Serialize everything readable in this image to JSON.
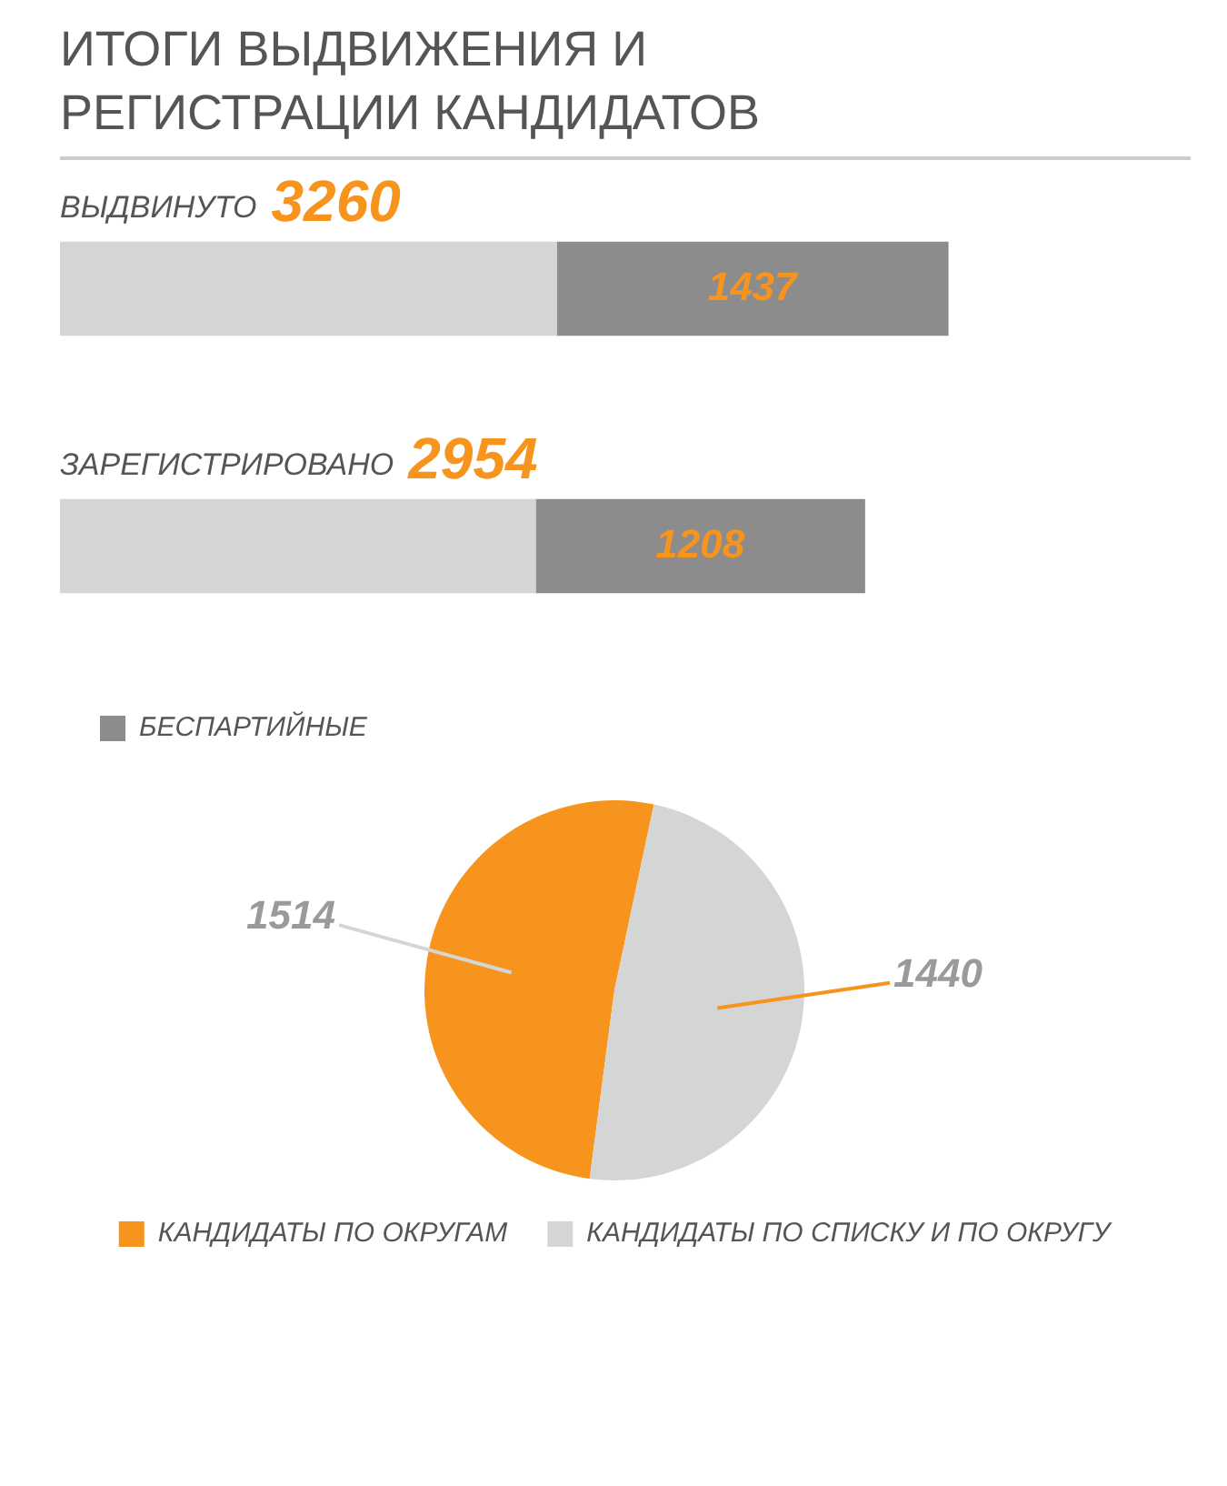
{
  "chart_data": [
    {
      "type": "bar",
      "title": "ИТОГИ ВЫДВИЖЕНИЯ И РЕГИСТРАЦИИ КАНДИДАТОВ",
      "orientation": "horizontal",
      "stacked": true,
      "categories": [
        "ВЫДВИНУТО",
        "ЗАРЕГИСТРИРОВАНО"
      ],
      "series": [
        {
          "color": "#d4d6d6",
          "values": [
            1823,
            1746
          ]
        },
        {
          "name": "БЕСПАРТИЙНЫЕ",
          "color": "#8c8c8c",
          "values": [
            1437,
            1208
          ],
          "value_labels": [
            "1437",
            "1208"
          ]
        }
      ],
      "totals": [
        "3260",
        "2954"
      ],
      "legend": "bottom left"
    },
    {
      "type": "pie",
      "categories": [
        "КАНДИДАТЫ ПО ОКРУГАМ",
        "КАНДИДАТЫ ПО СПИСКУ И ПО ОКРУГУ"
      ],
      "values": [
        1514,
        1440
      ],
      "colors": [
        "#f7941d",
        "#d4d6d6"
      ],
      "data_labels": true,
      "legend": "bottom"
    }
  ]
}
